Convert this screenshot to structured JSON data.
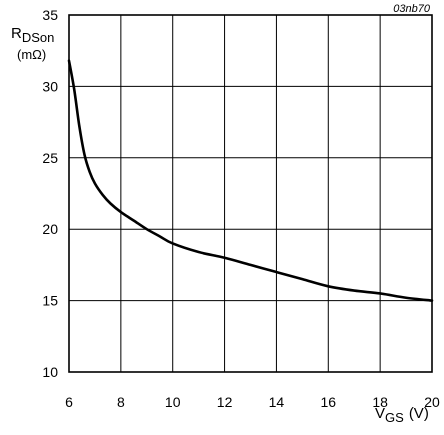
{
  "chart_data": {
    "type": "line",
    "figure_code": "03nb70",
    "title": "",
    "ylabel": {
      "main": "R",
      "sub": "DSon",
      "unit": "(mΩ)"
    },
    "xlabel": {
      "main": "V",
      "sub": "GS",
      "unit": "(V)"
    },
    "xlim": [
      6,
      20
    ],
    "ylim": [
      10,
      35
    ],
    "x_ticks": [
      6,
      8,
      10,
      12,
      14,
      16,
      18,
      20
    ],
    "y_ticks": [
      10,
      15,
      20,
      25,
      30,
      35
    ],
    "grid": true,
    "series": [
      {
        "x": [
          6.0,
          6.2,
          6.4,
          6.6,
          6.8,
          7.0,
          7.3,
          7.6,
          8.0,
          8.5,
          9.0,
          9.5,
          10.0,
          11.0,
          12.0,
          13.0,
          14.0,
          15.0,
          16.0,
          17.0,
          18.0,
          19.0,
          20.0
        ],
        "values": [
          31.8,
          29.8,
          27.2,
          25.2,
          24.0,
          23.2,
          22.4,
          21.8,
          21.2,
          20.6,
          20.0,
          19.5,
          19.0,
          18.4,
          18.0,
          17.5,
          17.0,
          16.5,
          16.0,
          15.7,
          15.5,
          15.2,
          15.0
        ]
      }
    ]
  },
  "colors": {
    "background": "#ffffff",
    "axis": "#000000",
    "grid": "#000000",
    "curve": "#000000"
  }
}
